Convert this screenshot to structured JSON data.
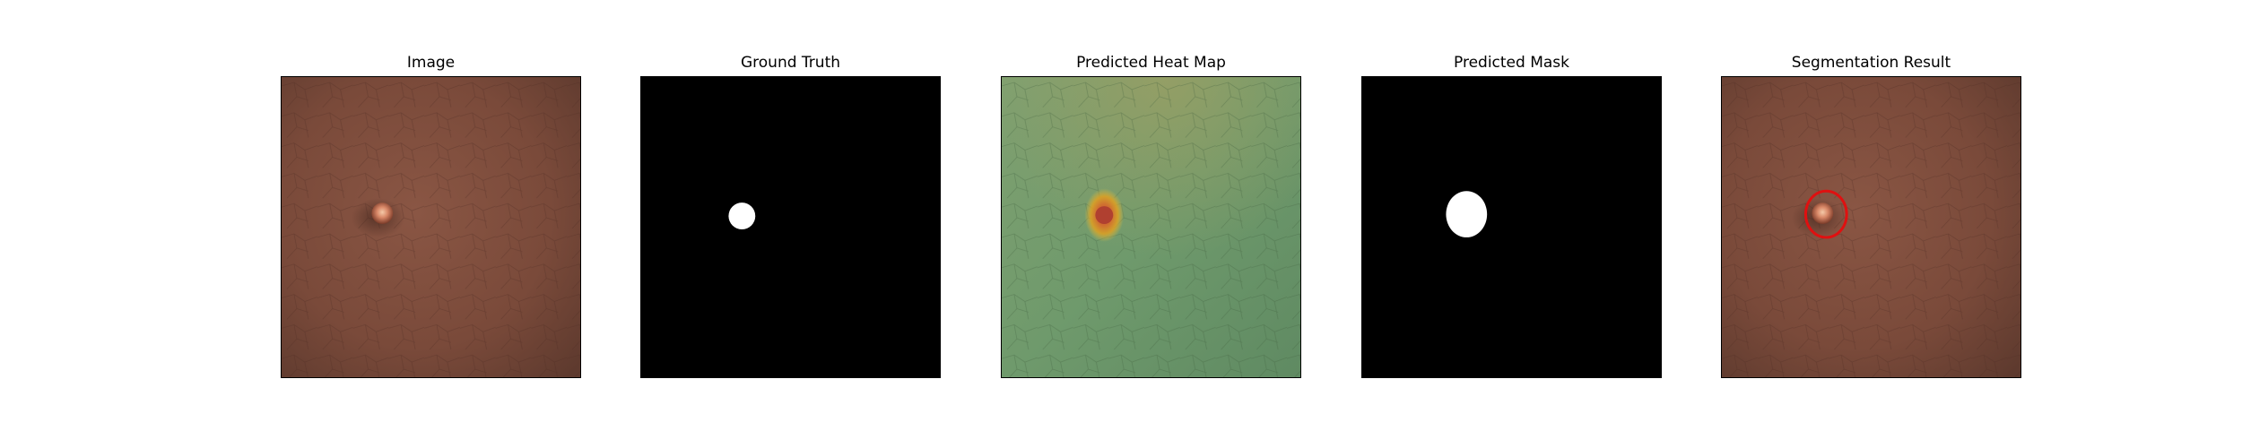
{
  "figure": {
    "panels": [
      {
        "title": "Image"
      },
      {
        "title": "Ground Truth"
      },
      {
        "title": "Predicted Heat Map"
      },
      {
        "title": "Predicted Mask"
      },
      {
        "title": "Segmentation Result"
      }
    ]
  },
  "colors": {
    "leather": "#7a4a3a",
    "mask_background": "#000000",
    "mask_foreground": "#ffffff",
    "heatmap_base": "#6f9a6c",
    "heatmap_hot": "#e0a020",
    "result_circle": "#e01010"
  }
}
